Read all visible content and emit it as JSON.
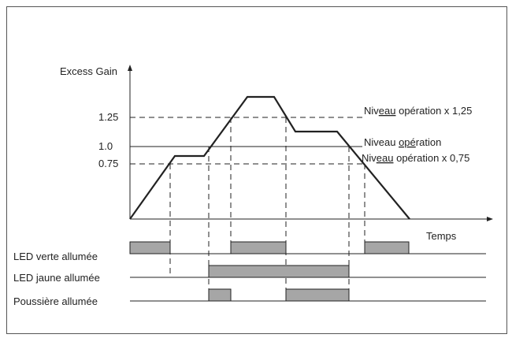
{
  "axis": {
    "ylabel": "Excess Gain",
    "xlabel": "Temps"
  },
  "levels": {
    "v125": "1.25",
    "v100": "1.0",
    "v075": "0.75"
  },
  "level_labels": {
    "l125_prefix": "Niv",
    "l125_underlined": "eau",
    "l125_suffix": " opération x 1,25",
    "l100_prefix": "Niveau ",
    "l100_underlined": "opé",
    "l100_suffix": "ration",
    "l075_prefix": "Niv",
    "l075_underlined": "eau",
    "l075_suffix": " opération x 0,75"
  },
  "rows": {
    "led_green": "LED verte allumée",
    "led_yellow": "LED jaune allumée",
    "dust": "Poussière allumée"
  },
  "colors": {
    "signal_fill": "#a6a6a6",
    "line": "#222222",
    "frame": "#555555"
  }
}
